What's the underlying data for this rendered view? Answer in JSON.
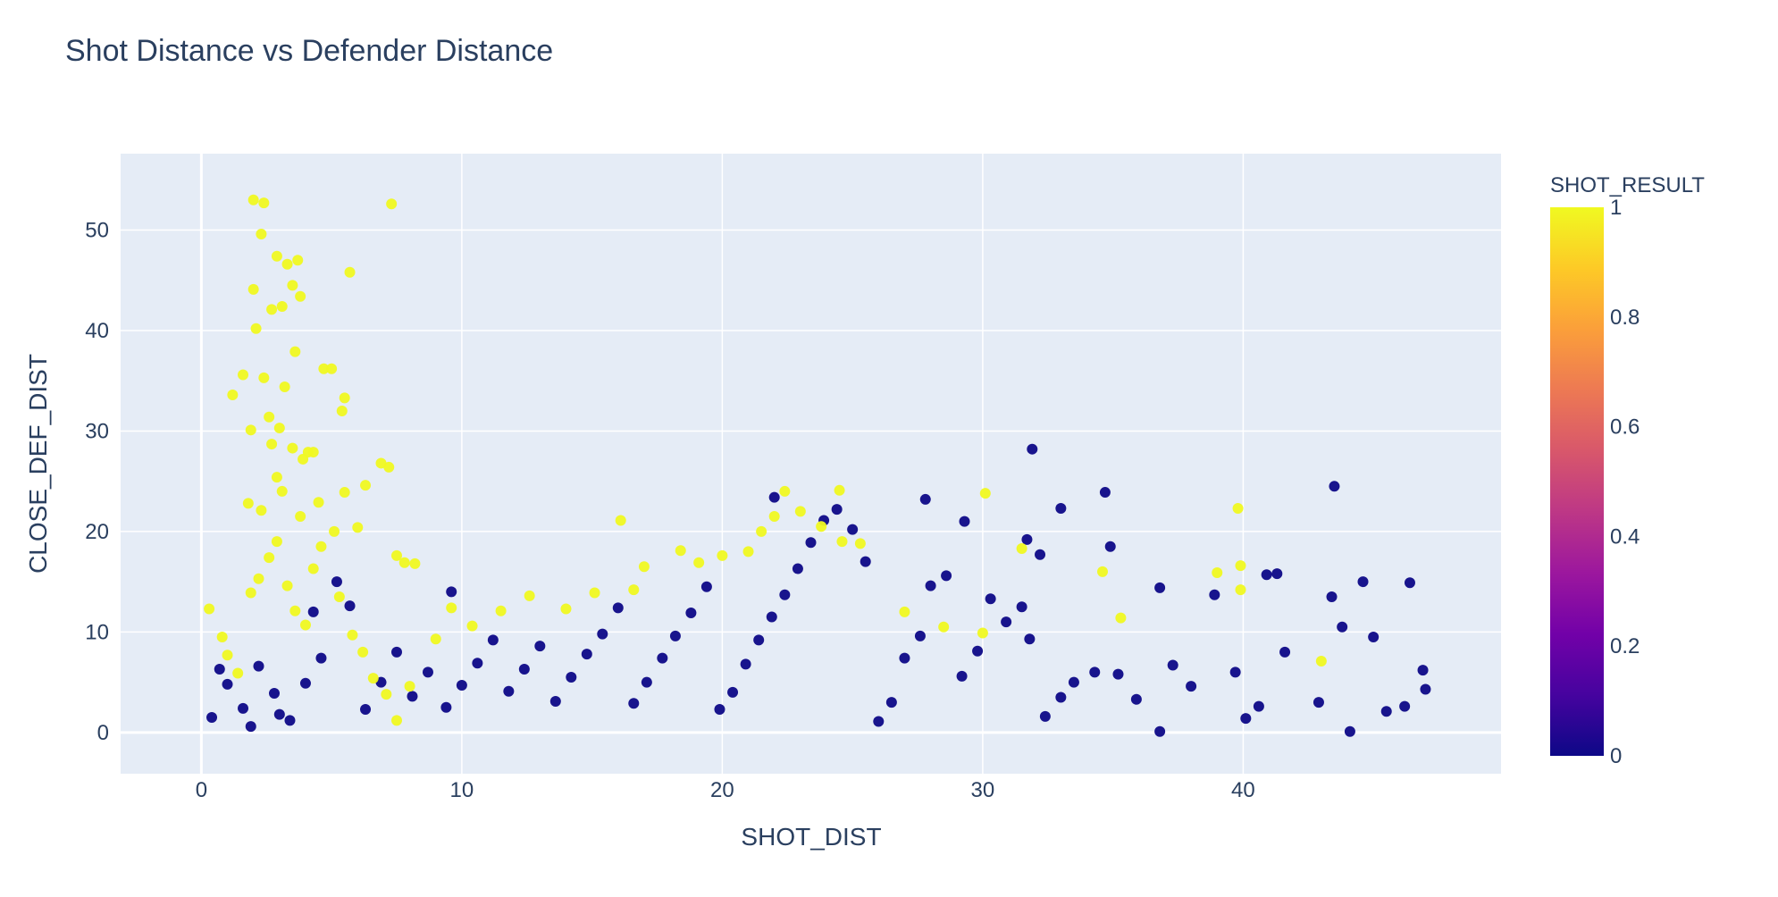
{
  "chart_data": {
    "type": "scatter",
    "title": "Shot Distance vs Defender Distance",
    "xlabel": "SHOT_DIST",
    "ylabel": "CLOSE_DEF_DIST",
    "xlim": [
      -3.1,
      49.9
    ],
    "ylim": [
      -4.1,
      57.6
    ],
    "x_ticks": [
      0,
      10,
      20,
      30,
      40
    ],
    "y_ticks": [
      0,
      10,
      20,
      30,
      40,
      50
    ],
    "grid": true,
    "colorbar": {
      "title": "SHOT_RESULT",
      "ticks": [
        "1",
        "0.8",
        "0.6",
        "0.4",
        "0.2",
        "0"
      ],
      "colorscale": [
        "#0d0887",
        "#46039f",
        "#7201a8",
        "#9c179e",
        "#bd3786",
        "#d8576b",
        "#ed7953",
        "#fb9f3a",
        "#fdca26",
        "#f0f921"
      ],
      "range": [
        0,
        1
      ]
    },
    "series_note_colors": {
      "made": "#f0f921",
      "missed": "#0d0887"
    },
    "points_made": [
      [
        2.0,
        53.0
      ],
      [
        2.4,
        52.7
      ],
      [
        7.3,
        52.6
      ],
      [
        2.3,
        49.6
      ],
      [
        2.9,
        47.4
      ],
      [
        3.7,
        47.0
      ],
      [
        3.3,
        46.6
      ],
      [
        5.7,
        45.8
      ],
      [
        2.0,
        44.1
      ],
      [
        3.5,
        44.5
      ],
      [
        3.8,
        43.4
      ],
      [
        2.7,
        42.1
      ],
      [
        3.1,
        42.4
      ],
      [
        2.1,
        40.2
      ],
      [
        3.6,
        37.9
      ],
      [
        4.7,
        36.2
      ],
      [
        5.0,
        36.2
      ],
      [
        1.6,
        35.6
      ],
      [
        2.4,
        35.3
      ],
      [
        3.2,
        34.4
      ],
      [
        1.2,
        33.6
      ],
      [
        5.5,
        33.3
      ],
      [
        5.4,
        32.0
      ],
      [
        2.6,
        31.4
      ],
      [
        3.0,
        30.3
      ],
      [
        1.9,
        30.1
      ],
      [
        4.1,
        27.9
      ],
      [
        3.9,
        27.2
      ],
      [
        6.9,
        26.8
      ],
      [
        7.2,
        26.4
      ],
      [
        2.7,
        28.7
      ],
      [
        3.5,
        28.3
      ],
      [
        4.3,
        27.9
      ],
      [
        2.9,
        25.4
      ],
      [
        6.3,
        24.6
      ],
      [
        3.1,
        24.0
      ],
      [
        5.5,
        23.9
      ],
      [
        1.8,
        22.8
      ],
      [
        4.5,
        22.9
      ],
      [
        2.3,
        22.1
      ],
      [
        3.8,
        21.5
      ],
      [
        16.1,
        21.1
      ],
      [
        6.0,
        20.4
      ],
      [
        7.5,
        17.6
      ],
      [
        7.8,
        16.9
      ],
      [
        8.2,
        16.8
      ],
      [
        30.1,
        23.8
      ],
      [
        39.8,
        22.3
      ],
      [
        24.5,
        24.1
      ],
      [
        22.4,
        24.0
      ],
      [
        39.0,
        15.9
      ],
      [
        39.9,
        16.6
      ],
      [
        39.9,
        14.2
      ],
      [
        43.0,
        7.1
      ],
      [
        35.3,
        11.4
      ],
      [
        34.6,
        16.0
      ],
      [
        31.5,
        18.3
      ],
      [
        30.0,
        9.9
      ],
      [
        28.5,
        10.5
      ],
      [
        27.0,
        12.0
      ],
      [
        18.4,
        18.1
      ],
      [
        19.1,
        16.9
      ],
      [
        20.0,
        17.6
      ],
      [
        21.0,
        18.0
      ],
      [
        21.5,
        20.0
      ],
      [
        22.0,
        21.5
      ],
      [
        23.0,
        22.0
      ],
      [
        23.8,
        20.5
      ],
      [
        24.6,
        19.0
      ],
      [
        25.3,
        18.8
      ],
      [
        17.0,
        16.5
      ],
      [
        16.6,
        14.2
      ],
      [
        15.1,
        13.9
      ],
      [
        14.0,
        12.3
      ],
      [
        12.6,
        13.6
      ],
      [
        11.5,
        12.1
      ],
      [
        10.4,
        10.6
      ],
      [
        9.6,
        12.4
      ],
      [
        9.0,
        9.3
      ],
      [
        0.3,
        12.3
      ],
      [
        0.8,
        9.5
      ],
      [
        1.0,
        7.7
      ],
      [
        1.4,
        5.9
      ],
      [
        1.9,
        13.9
      ],
      [
        2.2,
        15.3
      ],
      [
        2.6,
        17.4
      ],
      [
        2.9,
        19.0
      ],
      [
        3.3,
        14.6
      ],
      [
        3.6,
        12.1
      ],
      [
        4.0,
        10.7
      ],
      [
        4.3,
        16.3
      ],
      [
        4.6,
        18.5
      ],
      [
        5.1,
        20.0
      ],
      [
        5.3,
        13.5
      ],
      [
        5.8,
        9.7
      ],
      [
        6.2,
        8.0
      ],
      [
        6.6,
        5.4
      ],
      [
        7.1,
        3.8
      ],
      [
        7.5,
        1.2
      ],
      [
        8.0,
        4.6
      ]
    ],
    "points_missed": [
      [
        31.9,
        28.2
      ],
      [
        43.5,
        24.5
      ],
      [
        34.7,
        23.9
      ],
      [
        33.0,
        22.3
      ],
      [
        22.0,
        23.4
      ],
      [
        27.8,
        23.2
      ],
      [
        29.3,
        21.0
      ],
      [
        32.2,
        17.7
      ],
      [
        31.7,
        19.2
      ],
      [
        34.9,
        18.5
      ],
      [
        36.8,
        14.4
      ],
      [
        38.9,
        13.7
      ],
      [
        40.9,
        15.7
      ],
      [
        41.3,
        15.8
      ],
      [
        43.4,
        13.5
      ],
      [
        44.6,
        15.0
      ],
      [
        46.4,
        14.9
      ],
      [
        43.8,
        10.5
      ],
      [
        45.0,
        9.5
      ],
      [
        46.9,
        6.2
      ],
      [
        47.0,
        4.3
      ],
      [
        45.5,
        2.1
      ],
      [
        46.2,
        2.6
      ],
      [
        44.1,
        0.1
      ],
      [
        42.9,
        3.0
      ],
      [
        41.6,
        8.0
      ],
      [
        40.6,
        2.6
      ],
      [
        40.1,
        1.4
      ],
      [
        39.7,
        6.0
      ],
      [
        38.0,
        4.6
      ],
      [
        37.3,
        6.7
      ],
      [
        36.8,
        0.1
      ],
      [
        35.9,
        3.3
      ],
      [
        35.2,
        5.8
      ],
      [
        34.3,
        6.0
      ],
      [
        33.5,
        5.0
      ],
      [
        33.0,
        3.5
      ],
      [
        32.4,
        1.6
      ],
      [
        31.8,
        9.3
      ],
      [
        31.5,
        12.5
      ],
      [
        30.9,
        11.0
      ],
      [
        30.3,
        13.3
      ],
      [
        29.8,
        8.1
      ],
      [
        29.2,
        5.6
      ],
      [
        28.6,
        15.6
      ],
      [
        28.0,
        14.6
      ],
      [
        27.6,
        9.6
      ],
      [
        27.0,
        7.4
      ],
      [
        26.5,
        3.0
      ],
      [
        26.0,
        1.1
      ],
      [
        25.5,
        17.0
      ],
      [
        25.0,
        20.2
      ],
      [
        24.4,
        22.2
      ],
      [
        23.9,
        21.1
      ],
      [
        23.4,
        18.9
      ],
      [
        22.9,
        16.3
      ],
      [
        22.4,
        13.7
      ],
      [
        21.9,
        11.5
      ],
      [
        21.4,
        9.2
      ],
      [
        20.9,
        6.8
      ],
      [
        20.4,
        4.0
      ],
      [
        19.9,
        2.3
      ],
      [
        19.4,
        14.5
      ],
      [
        18.8,
        11.9
      ],
      [
        18.2,
        9.6
      ],
      [
        17.7,
        7.4
      ],
      [
        17.1,
        5.0
      ],
      [
        16.6,
        2.9
      ],
      [
        16.0,
        12.4
      ],
      [
        15.4,
        9.8
      ],
      [
        14.8,
        7.8
      ],
      [
        14.2,
        5.5
      ],
      [
        13.6,
        3.1
      ],
      [
        13.0,
        8.6
      ],
      [
        12.4,
        6.3
      ],
      [
        11.8,
        4.1
      ],
      [
        11.2,
        9.2
      ],
      [
        10.6,
        6.9
      ],
      [
        10.0,
        4.7
      ],
      [
        9.6,
        14.0
      ],
      [
        9.4,
        2.5
      ],
      [
        8.7,
        6.0
      ],
      [
        8.1,
        3.6
      ],
      [
        7.5,
        8.0
      ],
      [
        6.9,
        5.0
      ],
      [
        6.3,
        2.3
      ],
      [
        5.7,
        12.6
      ],
      [
        5.2,
        15.0
      ],
      [
        4.6,
        7.4
      ],
      [
        4.0,
        4.9
      ],
      [
        3.4,
        1.2
      ],
      [
        2.8,
        3.9
      ],
      [
        2.2,
        6.6
      ],
      [
        1.6,
        2.4
      ],
      [
        1.0,
        4.8
      ],
      [
        0.4,
        1.5
      ],
      [
        0.7,
        6.3
      ],
      [
        1.9,
        0.6
      ],
      [
        3.0,
        1.8
      ],
      [
        4.3,
        12.0
      ]
    ]
  }
}
